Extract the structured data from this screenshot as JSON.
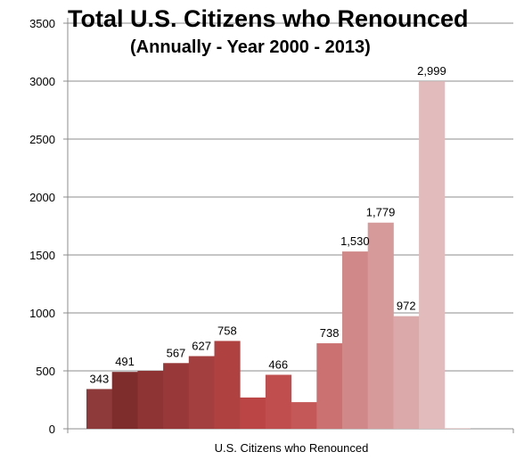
{
  "chart_data": {
    "type": "bar",
    "title": "Total U.S. Citizens who Renounced",
    "subtitle": "(Annually - Year 2000 - 2013)",
    "xlabel": "U.S. Citizens who Renounced",
    "ylabel": "",
    "ylim": [
      0,
      3500
    ],
    "yticks": [
      0,
      500,
      1000,
      1500,
      2000,
      2500,
      3000,
      3500
    ],
    "grid": true,
    "legend": "none",
    "series": [
      {
        "values": [
          343,
          491,
          500,
          567,
          627,
          758,
          270,
          466,
          230,
          738,
          1530,
          1779,
          972,
          2999,
          0
        ],
        "labels": [
          "343",
          "491",
          "",
          "567",
          "627",
          "758",
          "",
          "466",
          "",
          "738",
          "1,530",
          "1,779",
          "972",
          "2,999",
          ""
        ],
        "colors": [
          "#8e3a3a",
          "#7f2c2c",
          "#8e3434",
          "#993838",
          "#a43f3f",
          "#b04141",
          "#bb4545",
          "#c04e4e",
          "#c45858",
          "#cc7171",
          "#d08888",
          "#d69a9a",
          "#dba9a9",
          "#e2bcbc",
          "#ebd3d3"
        ]
      }
    ]
  }
}
